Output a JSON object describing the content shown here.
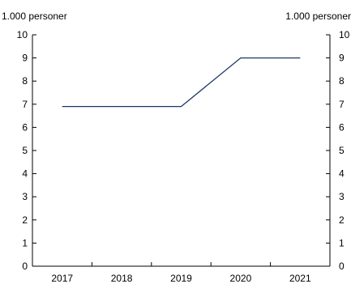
{
  "chart_data": {
    "type": "line",
    "title": "",
    "xlabel": "",
    "ylabel": "",
    "y_unit_left": "1.000 personer",
    "y_unit_right": "1.000 personer",
    "categories": [
      "2017",
      "2018",
      "2019",
      "2020",
      "2021"
    ],
    "series": [
      {
        "values": [
          6.9,
          6.9,
          6.9,
          9.0,
          9.0
        ],
        "color": "#1f3864"
      }
    ],
    "ylim": [
      0,
      10
    ],
    "yticks": [
      0,
      1,
      2,
      3,
      4,
      5,
      6,
      7,
      8,
      9,
      10
    ],
    "grid": false,
    "legend": "none",
    "axis_color": "#000000"
  }
}
